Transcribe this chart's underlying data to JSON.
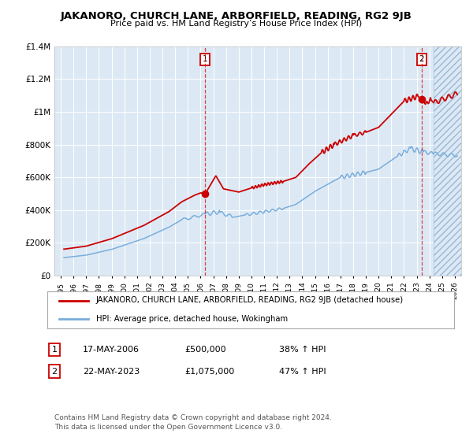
{
  "title": "JAKANORO, CHURCH LANE, ARBORFIELD, READING, RG2 9JB",
  "subtitle": "Price paid vs. HM Land Registry’s House Price Index (HPI)",
  "background_color": "#ffffff",
  "plot_bg_color": "#dce9f5",
  "grid_color": "#ffffff",
  "red_line_color": "#cc0000",
  "blue_line_color": "#7aadda",
  "sale1_year": 2006.37,
  "sale1_price": 500000,
  "sale2_year": 2023.38,
  "sale2_price": 1075000,
  "xmin": 1995,
  "xmax": 2026,
  "ymin": 0,
  "ymax": 1400000,
  "yticks": [
    0,
    200000,
    400000,
    600000,
    800000,
    1000000,
    1200000,
    1400000
  ],
  "ytick_labels": [
    "£0",
    "£200K",
    "£400K",
    "£600K",
    "£800K",
    "£1M",
    "£1.2M",
    "£1.4M"
  ],
  "legend1_label": "JAKANORO, CHURCH LANE, ARBORFIELD, READING, RG2 9JB (detached house)",
  "legend2_label": "HPI: Average price, detached house, Wokingham",
  "sale1_date": "17-MAY-2006",
  "sale1_price_str": "£500,000",
  "sale1_hpi": "38% ↑ HPI",
  "sale2_date": "22-MAY-2023",
  "sale2_price_str": "£1,075,000",
  "sale2_hpi": "47% ↑ HPI",
  "footer": "Contains HM Land Registry data © Crown copyright and database right 2024.\nThis data is licensed under the Open Government Licence v3.0.",
  "hatch_start_year": 2024.33
}
